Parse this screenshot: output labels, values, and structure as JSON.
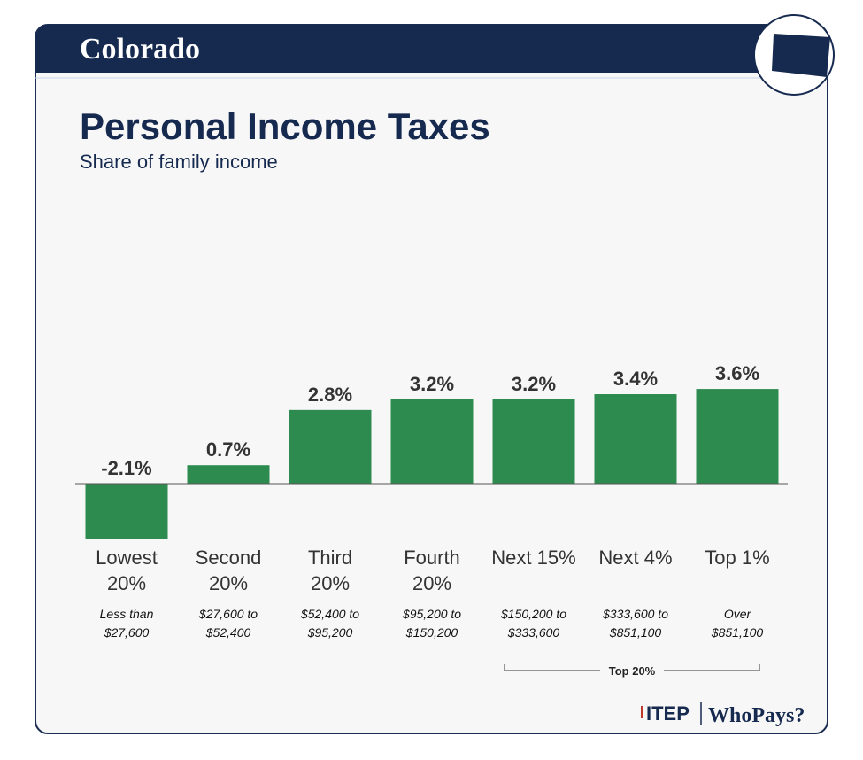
{
  "header": {
    "state": "Colorado"
  },
  "chart_data": {
    "type": "bar",
    "title": "Personal Income Taxes",
    "subtitle": "Share of family income",
    "categories": [
      "Lowest 20%",
      "Second 20%",
      "Third 20%",
      "Fourth 20%",
      "Next 15%",
      "Next 4%",
      "Top 1%"
    ],
    "income_ranges": [
      "Less than $27,600",
      "$27,600 to $52,400",
      "$52,400 to $95,200",
      "$95,200 to $150,200",
      "$150,200 to $333,600",
      "$333,600 to $851,100",
      "Over $851,100"
    ],
    "values": [
      -2.1,
      0.7,
      2.8,
      3.2,
      3.2,
      3.4,
      3.6
    ],
    "value_labels": [
      "-2.1%",
      "0.7%",
      "2.8%",
      "3.2%",
      "3.2%",
      "3.4%",
      "3.6%"
    ],
    "color": "#2e8b4f",
    "group_label": "Top 20%"
  },
  "footer": {
    "logo": "ITEP",
    "brand": "WhoPays?"
  }
}
